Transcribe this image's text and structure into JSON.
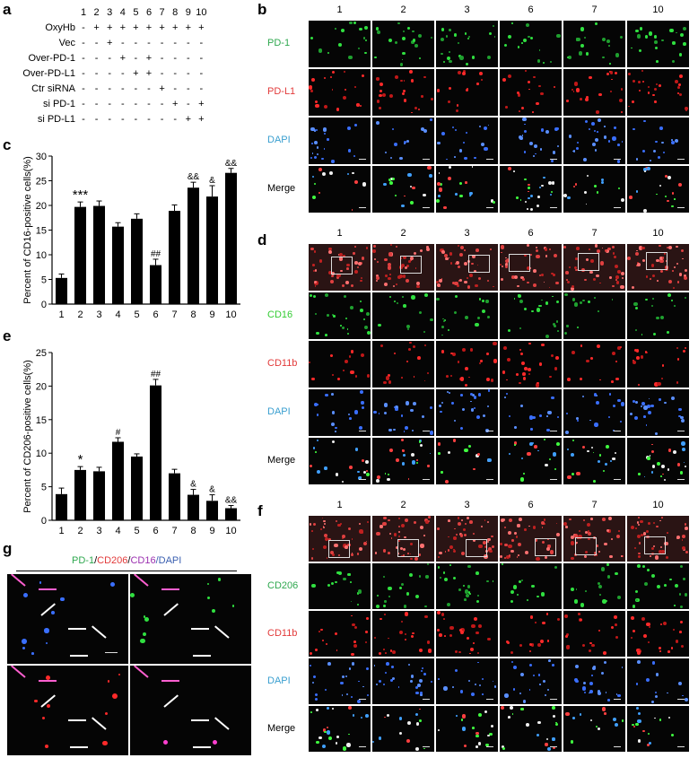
{
  "panels": {
    "a": "a",
    "b": "b",
    "c": "c",
    "d": "d",
    "e": "e",
    "f": "f",
    "g": "g"
  },
  "table_a": {
    "columns": [
      "1",
      "2",
      "3",
      "4",
      "5",
      "6",
      "7",
      "8",
      "9",
      "10"
    ],
    "rows": [
      {
        "label": "OxyHb",
        "values": [
          "-",
          "+",
          "+",
          "+",
          "+",
          "+",
          "+",
          "+",
          "+",
          "+"
        ]
      },
      {
        "label": "Vec",
        "values": [
          "-",
          "-",
          "+",
          "-",
          "-",
          "-",
          "-",
          "-",
          "-",
          "-"
        ]
      },
      {
        "label": "Over-PD-1",
        "values": [
          "-",
          "-",
          "-",
          "+",
          "-",
          "+",
          "-",
          "-",
          "-",
          "-"
        ]
      },
      {
        "label": "Over-PD-L1",
        "values": [
          "-",
          "-",
          "-",
          "-",
          "+",
          "+",
          "-",
          "-",
          "-",
          "-"
        ]
      },
      {
        "label": "Ctr siRNA",
        "values": [
          "-",
          "-",
          "-",
          "-",
          "-",
          "-",
          "+",
          "-",
          "-",
          "-"
        ]
      },
      {
        "label": "si PD-1",
        "values": [
          "-",
          "-",
          "-",
          "-",
          "-",
          "-",
          "-",
          "+",
          "-",
          "+"
        ]
      },
      {
        "label": "si PD-L1",
        "values": [
          "-",
          "-",
          "-",
          "-",
          "-",
          "-",
          "-",
          "-",
          "+",
          "+"
        ]
      }
    ]
  },
  "panel_b": {
    "columns": [
      "1",
      "2",
      "3",
      "6",
      "7",
      "10"
    ],
    "rows": [
      "PD-1",
      "PD-L1",
      "DAPI",
      "Merge"
    ],
    "row_colors": [
      "#2fa84f",
      "#e23a3a",
      "#3a9fd0",
      "#000000"
    ]
  },
  "panel_d": {
    "columns": [
      "1",
      "2",
      "3",
      "6",
      "7",
      "10"
    ],
    "rows": [
      "CD16",
      "CD11b",
      "DAPI",
      "Merge"
    ],
    "row_colors": [
      "#33cc33",
      "#e23a3a",
      "#3a9fd0",
      "#000000"
    ]
  },
  "panel_f": {
    "columns": [
      "1",
      "2",
      "3",
      "6",
      "7",
      "10"
    ],
    "rows": [
      "CD206",
      "CD11b",
      "DAPI",
      "Merge"
    ],
    "row_colors": [
      "#2fa84f",
      "#e23a3a",
      "#3a9fd0",
      "#000000"
    ]
  },
  "panel_g": {
    "title_parts": [
      {
        "text": "PD-1",
        "color": "#2fa84f"
      },
      {
        "text": "/",
        "color": "#000000"
      },
      {
        "text": "CD206",
        "color": "#e23a3a"
      },
      {
        "text": "/",
        "color": "#000000"
      },
      {
        "text": "CD16",
        "color": "#9b30b0"
      },
      {
        "text": "/DAPI",
        "color": "#3a5fb0"
      }
    ]
  },
  "chart_data": [
    {
      "type": "bar",
      "panel": "c",
      "ylabel": "Percent of CD16-positive cells(%)",
      "categories": [
        "1",
        "2",
        "3",
        "4",
        "5",
        "6",
        "7",
        "8",
        "9",
        "10"
      ],
      "values": [
        5.3,
        19.7,
        19.9,
        15.7,
        17.3,
        7.9,
        18.9,
        23.6,
        21.8,
        26.6
      ],
      "errors": [
        0.8,
        1.0,
        1.0,
        0.8,
        1.0,
        1.2,
        1.2,
        1.1,
        2.2,
        0.9
      ],
      "annotations": [
        "",
        "***",
        "",
        "",
        "",
        "##",
        "",
        "&&",
        "&",
        "&&"
      ],
      "ylim": [
        0,
        30
      ],
      "yticks": [
        0,
        5,
        10,
        15,
        20,
        25,
        30
      ]
    },
    {
      "type": "bar",
      "panel": "e",
      "ylabel": "Percent of CD206-positive cells(%)",
      "categories": [
        "1",
        "2",
        "3",
        "4",
        "5",
        "6",
        "7",
        "8",
        "9",
        "10"
      ],
      "values": [
        3.9,
        7.5,
        7.3,
        11.7,
        9.5,
        20.1,
        7.0,
        3.8,
        2.9,
        1.8
      ],
      "errors": [
        0.9,
        0.5,
        0.6,
        0.6,
        0.4,
        0.9,
        0.6,
        0.8,
        0.9,
        0.4
      ],
      "annotations": [
        "",
        "*",
        "",
        "#",
        "",
        "##",
        "",
        "&",
        "&",
        "&&"
      ],
      "ylim": [
        0,
        25
      ],
      "yticks": [
        0,
        5,
        10,
        15,
        20,
        25
      ]
    }
  ]
}
